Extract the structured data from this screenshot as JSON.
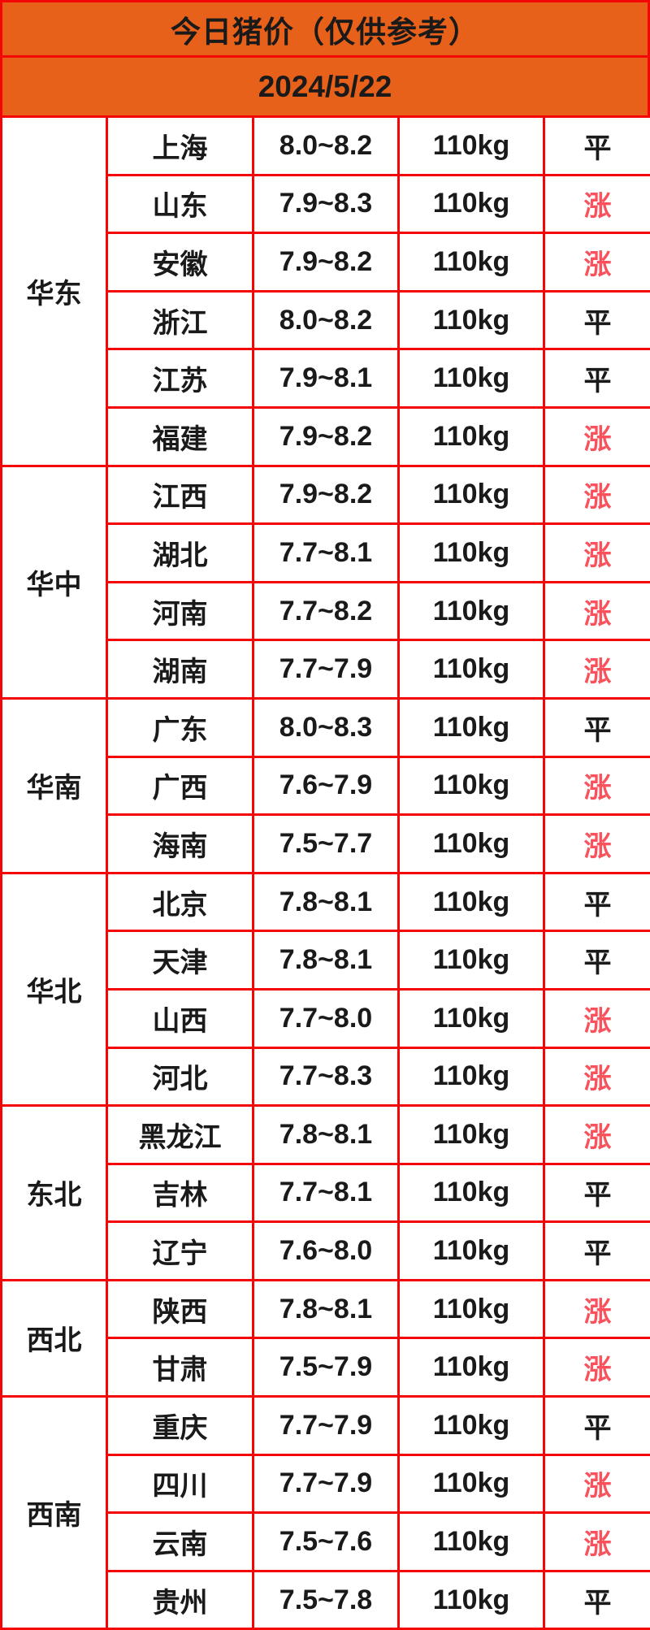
{
  "title": "今日猪价（仅供参考）",
  "date": "2024/5/22",
  "trend_labels": {
    "rise": "涨",
    "flat": "平"
  },
  "colors": {
    "header_orange": "#e8611b",
    "grid_red": "#f50606",
    "rise_red": "#f9525c",
    "text_black": "#1a1a1a"
  },
  "regions": [
    {
      "name": "华东",
      "rows": [
        {
          "province": "上海",
          "price": "8.0~8.2",
          "weight": "110kg",
          "trend": "平"
        },
        {
          "province": "山东",
          "price": "7.9~8.3",
          "weight": "110kg",
          "trend": "涨"
        },
        {
          "province": "安徽",
          "price": "7.9~8.2",
          "weight": "110kg",
          "trend": "涨"
        },
        {
          "province": "浙江",
          "price": "8.0~8.2",
          "weight": "110kg",
          "trend": "平"
        },
        {
          "province": "江苏",
          "price": "7.9~8.1",
          "weight": "110kg",
          "trend": "平"
        },
        {
          "province": "福建",
          "price": "7.9~8.2",
          "weight": "110kg",
          "trend": "涨"
        }
      ]
    },
    {
      "name": "华中",
      "rows": [
        {
          "province": "江西",
          "price": "7.9~8.2",
          "weight": "110kg",
          "trend": "涨"
        },
        {
          "province": "湖北",
          "price": "7.7~8.1",
          "weight": "110kg",
          "trend": "涨"
        },
        {
          "province": "河南",
          "price": "7.7~8.2",
          "weight": "110kg",
          "trend": "涨"
        },
        {
          "province": "湖南",
          "price": "7.7~7.9",
          "weight": "110kg",
          "trend": "涨"
        }
      ]
    },
    {
      "name": "华南",
      "rows": [
        {
          "province": "广东",
          "price": "8.0~8.3",
          "weight": "110kg",
          "trend": "平"
        },
        {
          "province": "广西",
          "price": "7.6~7.9",
          "weight": "110kg",
          "trend": "涨"
        },
        {
          "province": "海南",
          "price": "7.5~7.7",
          "weight": "110kg",
          "trend": "涨"
        }
      ]
    },
    {
      "name": "华北",
      "rows": [
        {
          "province": "北京",
          "price": "7.8~8.1",
          "weight": "110kg",
          "trend": "平"
        },
        {
          "province": "天津",
          "price": "7.8~8.1",
          "weight": "110kg",
          "trend": "平"
        },
        {
          "province": "山西",
          "price": "7.7~8.0",
          "weight": "110kg",
          "trend": "涨"
        },
        {
          "province": "河北",
          "price": "7.7~8.3",
          "weight": "110kg",
          "trend": "涨"
        }
      ]
    },
    {
      "name": "东北",
      "rows": [
        {
          "province": "黑龙江",
          "price": "7.8~8.1",
          "weight": "110kg",
          "trend": "涨"
        },
        {
          "province": "吉林",
          "price": "7.7~8.1",
          "weight": "110kg",
          "trend": "平"
        },
        {
          "province": "辽宁",
          "price": "7.6~8.0",
          "weight": "110kg",
          "trend": "平"
        }
      ]
    },
    {
      "name": "西北",
      "rows": [
        {
          "province": "陕西",
          "price": "7.8~8.1",
          "weight": "110kg",
          "trend": "涨"
        },
        {
          "province": "甘肃",
          "price": "7.5~7.9",
          "weight": "110kg",
          "trend": "涨"
        }
      ]
    },
    {
      "name": "西南",
      "rows": [
        {
          "province": "重庆",
          "price": "7.7~7.9",
          "weight": "110kg",
          "trend": "平"
        },
        {
          "province": "四川",
          "price": "7.7~7.9",
          "weight": "110kg",
          "trend": "涨"
        },
        {
          "province": "云南",
          "price": "7.5~7.6",
          "weight": "110kg",
          "trend": "涨"
        },
        {
          "province": "贵州",
          "price": "7.5~7.8",
          "weight": "110kg",
          "trend": "平"
        }
      ]
    }
  ]
}
